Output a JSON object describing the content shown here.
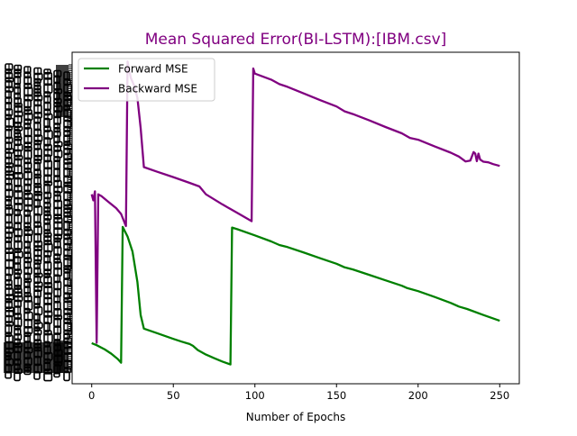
{
  "chart_data": {
    "type": "line",
    "title": "Mean Squared Error(BI-LSTM):[IBM.csv]",
    "xlabel": "Number of Epochs",
    "ylabel": "",
    "xlim": [
      -12,
      262
    ],
    "ylim": [
      0,
      1
    ],
    "x_ticks": [
      0,
      50,
      100,
      150,
      200,
      250
    ],
    "y_ticks_note": "y tick labels are an illegible overlapping black mass",
    "grid": false,
    "legend_position": "top-left",
    "series": [
      {
        "name": "Forward MSE",
        "color": "#008000",
        "points": [
          [
            0,
            0.087
          ],
          [
            3,
            0.08
          ],
          [
            8,
            0.066
          ],
          [
            12,
            0.052
          ],
          [
            16,
            0.034
          ],
          [
            18,
            0.022
          ],
          [
            19,
            0.472
          ],
          [
            22,
            0.44
          ],
          [
            25,
            0.39
          ],
          [
            28,
            0.29
          ],
          [
            30,
            0.18
          ],
          [
            32,
            0.135
          ],
          [
            40,
            0.12
          ],
          [
            50,
            0.101
          ],
          [
            55,
            0.092
          ],
          [
            60,
            0.084
          ],
          [
            62,
            0.078
          ],
          [
            65,
            0.064
          ],
          [
            70,
            0.049
          ],
          [
            75,
            0.037
          ],
          [
            80,
            0.026
          ],
          [
            85,
            0.016
          ],
          [
            86,
            0.47
          ],
          [
            90,
            0.463
          ],
          [
            100,
            0.444
          ],
          [
            110,
            0.424
          ],
          [
            115,
            0.412
          ],
          [
            120,
            0.405
          ],
          [
            130,
            0.387
          ],
          [
            140,
            0.368
          ],
          [
            150,
            0.35
          ],
          [
            155,
            0.338
          ],
          [
            160,
            0.331
          ],
          [
            170,
            0.313
          ],
          [
            180,
            0.295
          ],
          [
            190,
            0.277
          ],
          [
            193,
            0.27
          ],
          [
            200,
            0.259
          ],
          [
            210,
            0.24
          ],
          [
            220,
            0.22
          ],
          [
            225,
            0.208
          ],
          [
            230,
            0.2
          ],
          [
            240,
            0.18
          ],
          [
            250,
            0.161
          ]
        ]
      },
      {
        "name": "Backward MSE",
        "color": "#800080",
        "points": [
          [
            0,
            0.58
          ],
          [
            1,
            0.56
          ],
          [
            2,
            0.59
          ],
          [
            3,
            0.088
          ],
          [
            4,
            0.58
          ],
          [
            6,
            0.574
          ],
          [
            10,
            0.556
          ],
          [
            15,
            0.534
          ],
          [
            18,
            0.515
          ],
          [
            21,
            0.475
          ],
          [
            22,
            1.02
          ],
          [
            23,
            0.99
          ],
          [
            24,
            0.965
          ],
          [
            26,
            0.94
          ],
          [
            28,
            0.9
          ],
          [
            30,
            0.8
          ],
          [
            32,
            0.67
          ],
          [
            40,
            0.655
          ],
          [
            50,
            0.637
          ],
          [
            60,
            0.618
          ],
          [
            66,
            0.606
          ],
          [
            70,
            0.58
          ],
          [
            80,
            0.547
          ],
          [
            90,
            0.516
          ],
          [
            98,
            0.491
          ],
          [
            99,
            0.997
          ],
          [
            100,
            0.98
          ],
          [
            110,
            0.96
          ],
          [
            115,
            0.945
          ],
          [
            120,
            0.936
          ],
          [
            130,
            0.914
          ],
          [
            140,
            0.892
          ],
          [
            150,
            0.871
          ],
          [
            155,
            0.855
          ],
          [
            160,
            0.846
          ],
          [
            170,
            0.825
          ],
          [
            180,
            0.803
          ],
          [
            190,
            0.782
          ],
          [
            195,
            0.767
          ],
          [
            200,
            0.761
          ],
          [
            210,
            0.739
          ],
          [
            220,
            0.718
          ],
          [
            225,
            0.705
          ],
          [
            229,
            0.689
          ],
          [
            232,
            0.692
          ],
          [
            234,
            0.72
          ],
          [
            235,
            0.715
          ],
          [
            236,
            0.69
          ],
          [
            237,
            0.715
          ],
          [
            238,
            0.695
          ],
          [
            240,
            0.688
          ],
          [
            243,
            0.686
          ],
          [
            246,
            0.68
          ],
          [
            250,
            0.674
          ]
        ]
      }
    ]
  }
}
